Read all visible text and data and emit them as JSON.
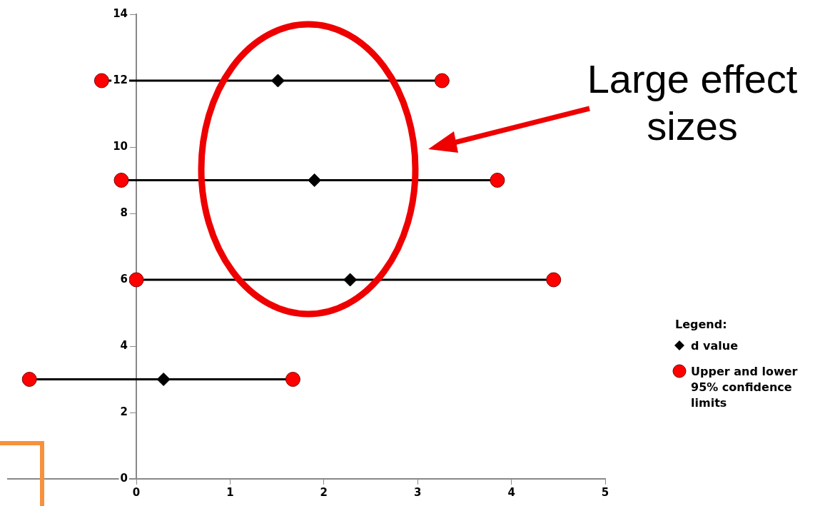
{
  "chart_data": {
    "type": "scatter",
    "xlim": [
      -1.37,
      5
    ],
    "xticks": [
      0,
      1,
      2,
      3,
      4,
      5
    ],
    "ylim": [
      0,
      14
    ],
    "yticks": [
      0,
      2,
      4,
      6,
      8,
      10,
      12,
      14
    ],
    "legend": "right",
    "legend_title": "Legend:",
    "annotations": [
      "Large effect sizes"
    ],
    "series": [
      {
        "name": "Upper and lower 95% confidence limits",
        "type": "line",
        "color": "#ff0000",
        "marker": "circle",
        "x": [
          -0.37,
          3.26,
          null,
          -0.16,
          3.85,
          null,
          0,
          4.45,
          null,
          -1.14,
          1.67
        ],
        "values": [
          12,
          12,
          null,
          9,
          9,
          null,
          6,
          6,
          null,
          3,
          3
        ]
      },
      {
        "name": "d value",
        "color": "#000000",
        "marker": "diamond",
        "x": [
          1.51,
          1.9,
          2.28,
          0.29
        ],
        "values": [
          12,
          9,
          6,
          3
        ]
      }
    ]
  }
}
